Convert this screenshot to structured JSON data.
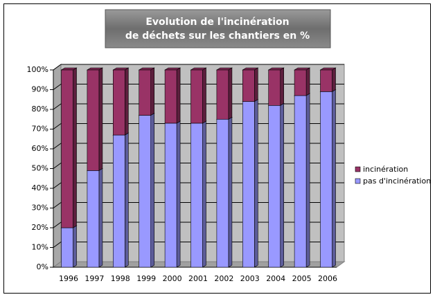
{
  "chart_data": {
    "type": "bar",
    "stacked": true,
    "title": [
      "Evolution de l'incinération",
      "de déchets sur les chantiers en %"
    ],
    "categories": [
      "1996",
      "1997",
      "1998",
      "1999",
      "2000",
      "2001",
      "2002",
      "2003",
      "2004",
      "2005",
      "2006"
    ],
    "series": [
      {
        "name": "pas d'incinération",
        "color": "#9999ff",
        "values": [
          20,
          49,
          67,
          77,
          73,
          73,
          75,
          84,
          82,
          87,
          89
        ]
      },
      {
        "name": "incinération",
        "color": "#993366",
        "values": [
          80,
          51,
          33,
          23,
          27,
          27,
          25,
          16,
          18,
          13,
          11
        ]
      }
    ],
    "ylim": [
      0,
      100
    ],
    "yticks": [
      {
        "value": 0,
        "label": "0%"
      },
      {
        "value": 10,
        "label": "10%"
      },
      {
        "value": 20,
        "label": "20%"
      },
      {
        "value": 30,
        "label": "30%"
      },
      {
        "value": 40,
        "label": "40%"
      },
      {
        "value": 50,
        "label": "50%"
      },
      {
        "value": 60,
        "label": "60%"
      },
      {
        "value": 70,
        "label": "70%"
      },
      {
        "value": 80,
        "label": "80%"
      },
      {
        "value": 90,
        "label": "90%"
      },
      {
        "value": 100,
        "label": "100%"
      }
    ],
    "grid": true,
    "legend": "right"
  }
}
